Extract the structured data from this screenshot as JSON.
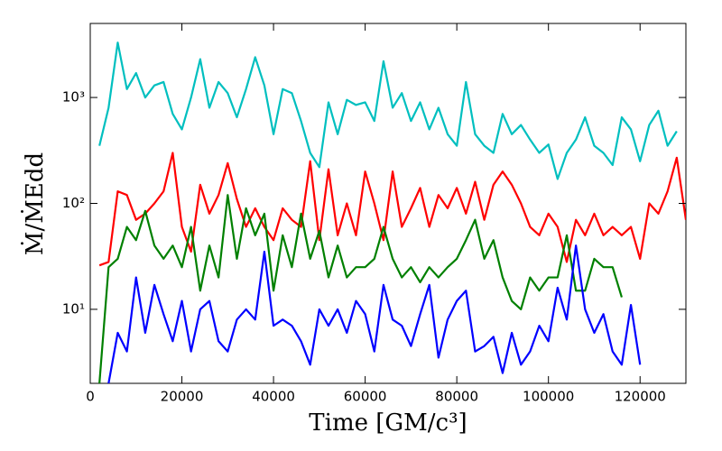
{
  "chart_data": {
    "type": "line",
    "xlabel": "Time [GM/c³]",
    "ylabel": "Ṁ/ṀEdd",
    "xlim": [
      0,
      130000
    ],
    "xticks": [
      0,
      20000,
      40000,
      60000,
      80000,
      100000,
      120000
    ],
    "ylim": [
      2,
      5000
    ],
    "log_y": true,
    "yticks": [
      {
        "value": 10,
        "label": "10¹"
      },
      {
        "value": 100,
        "label": "10²"
      },
      {
        "value": 1000,
        "label": "10³"
      }
    ],
    "x": [
      2000,
      4000,
      6000,
      8000,
      10000,
      12000,
      14000,
      16000,
      18000,
      20000,
      22000,
      24000,
      26000,
      28000,
      30000,
      32000,
      34000,
      36000,
      38000,
      40000,
      42000,
      44000,
      46000,
      48000,
      50000,
      52000,
      54000,
      56000,
      58000,
      60000,
      62000,
      64000,
      66000,
      68000,
      70000,
      72000,
      74000,
      76000,
      78000,
      80000,
      82000,
      84000,
      86000,
      88000,
      90000,
      92000,
      94000,
      96000,
      98000,
      100000,
      102000,
      104000,
      106000,
      108000,
      110000,
      112000,
      114000,
      116000,
      118000,
      120000,
      122000,
      124000,
      126000,
      128000,
      130000
    ],
    "series": [
      {
        "color": "#00bfbf",
        "values": [
          350,
          800,
          3300,
          1200,
          1700,
          1000,
          1300,
          1400,
          700,
          500,
          1000,
          2300,
          800,
          1400,
          1100,
          650,
          1200,
          2400,
          1300,
          450,
          1200,
          1100,
          600,
          300,
          220,
          900,
          450,
          950,
          850,
          900,
          600,
          2200,
          800,
          1100,
          600,
          900,
          500,
          800,
          450,
          350,
          1400,
          450,
          350,
          300,
          700,
          450,
          550,
          400,
          300,
          360,
          170,
          300,
          400,
          650,
          350,
          300,
          230,
          650,
          500,
          250,
          550,
          750,
          350,
          480,
          null
        ]
      },
      {
        "color": "#ff0000",
        "values": [
          26,
          28,
          130,
          120,
          70,
          80,
          100,
          130,
          300,
          60,
          35,
          150,
          80,
          120,
          240,
          110,
          60,
          90,
          60,
          45,
          90,
          70,
          60,
          250,
          45,
          210,
          50,
          100,
          50,
          200,
          100,
          45,
          200,
          60,
          90,
          140,
          60,
          120,
          90,
          140,
          80,
          160,
          70,
          150,
          200,
          150,
          100,
          60,
          50,
          80,
          60,
          28,
          70,
          50,
          80,
          50,
          60,
          50,
          60,
          30,
          100,
          80,
          130,
          270,
          70
        ]
      },
      {
        "color": "#008000",
        "values": [
          2,
          25,
          30,
          60,
          45,
          85,
          40,
          30,
          40,
          25,
          60,
          15,
          40,
          20,
          120,
          30,
          90,
          50,
          80,
          15,
          50,
          25,
          80,
          30,
          55,
          20,
          40,
          20,
          25,
          25,
          30,
          60,
          30,
          20,
          25,
          18,
          25,
          20,
          25,
          30,
          45,
          70,
          30,
          45,
          20,
          12,
          10,
          20,
          15,
          20,
          20,
          50,
          15,
          15,
          30,
          25,
          25,
          13,
          null,
          null,
          null,
          null,
          null,
          null,
          null
        ]
      },
      {
        "color": "#0000ff",
        "values": [
          null,
          2,
          6,
          4,
          20,
          6,
          17,
          9,
          5,
          12,
          4,
          10,
          12,
          5,
          4,
          8,
          10,
          8,
          35,
          7,
          8,
          7,
          5,
          3,
          10,
          7,
          10,
          6,
          12,
          9,
          4,
          17,
          8,
          7,
          4.5,
          9,
          17,
          3.5,
          8,
          12,
          15,
          4,
          4.5,
          5.5,
          2.5,
          6,
          3,
          4,
          7,
          5,
          16,
          8,
          40,
          10,
          6,
          9,
          4,
          3,
          11,
          3,
          null,
          null,
          null,
          null,
          null
        ]
      }
    ]
  }
}
